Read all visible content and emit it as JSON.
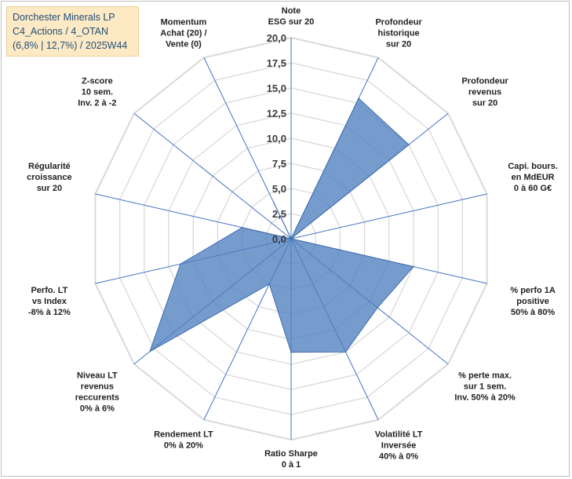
{
  "title_lines": [
    "Dorchester Minerals LP",
    "C4_Actions / 4_OTAN",
    "(6,8% | 12,7%) / 2025W44"
  ],
  "chart_data": {
    "type": "radar",
    "rmin": 0,
    "rmax": 20,
    "ticks": [
      "0,0",
      "2,5",
      "5,0",
      "7,5",
      "10,0",
      "12,5",
      "15,0",
      "17,5",
      "20,0"
    ],
    "axes": [
      {
        "lines": [
          "Note",
          "ESG sur 20"
        ]
      },
      {
        "lines": [
          "Profondeur",
          "historique",
          "sur 20"
        ]
      },
      {
        "lines": [
          "Profondeur",
          "revenus",
          "sur 20"
        ]
      },
      {
        "lines": [
          "Capi. bours.",
          "en MdEUR",
          "0 à 60 G€"
        ]
      },
      {
        "lines": [
          "% perfo 1A",
          "positive",
          "50% à 80%"
        ]
      },
      {
        "lines": [
          "% perte max.",
          "sur 1 sem.",
          "Inv. 50% à 20%"
        ]
      },
      {
        "lines": [
          "Volatilité LT",
          "Inversée",
          "40% à 0%"
        ]
      },
      {
        "lines": [
          "Ratio Sharpe",
          "0 à 1"
        ]
      },
      {
        "lines": [
          "Rendement LT",
          "0% à 20%"
        ]
      },
      {
        "lines": [
          "Niveau LT",
          "revenus",
          "reccurents",
          "0% à 6%"
        ]
      },
      {
        "lines": [
          "Perfo. LT",
          "vs Index",
          "-8% à 12%"
        ]
      },
      {
        "lines": [
          "Régularité",
          "croissance",
          "sur 20"
        ]
      },
      {
        "lines": [
          "Z-score",
          "10 sem.",
          "Inv. 2 à -2"
        ]
      },
      {
        "lines": [
          "Momentum",
          "Achat (20) /",
          "Vente (0)"
        ]
      }
    ],
    "series": [
      {
        "name": "Dorchester Minerals LP",
        "color": "#4f7fbf",
        "values": [
          0,
          15.5,
          15.0,
          0,
          12.5,
          11.0,
          12.5,
          11.3,
          5.0,
          18.0,
          11.3,
          5.0,
          0,
          4.0
        ]
      }
    ],
    "colors": {
      "grid": "#d9d9d9",
      "spoke": "#4472c4",
      "fill": "#4f7fbf",
      "stroke": "#3f6db0"
    }
  }
}
